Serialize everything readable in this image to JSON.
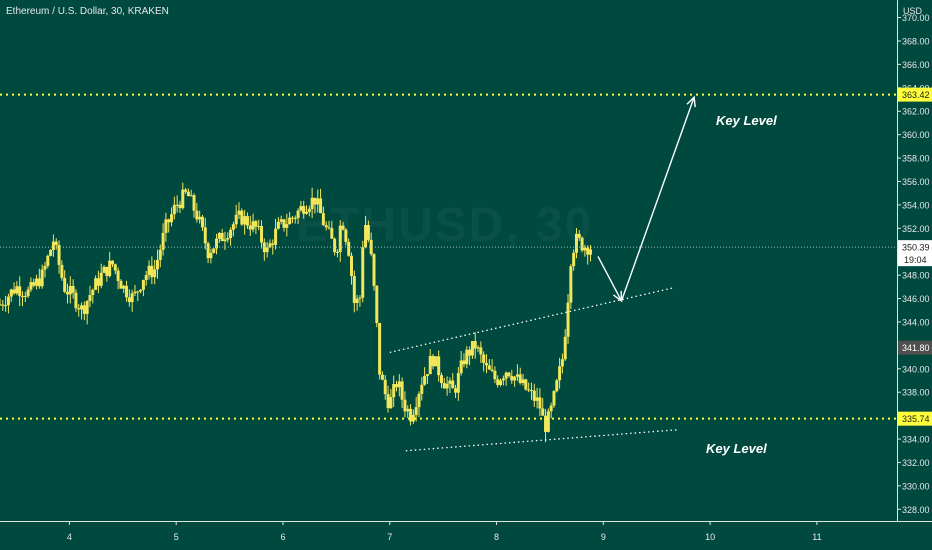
{
  "header": {
    "symbol_title": "Ethereum / U.S. Dollar, 30, KRAKEN",
    "watermark": "ETHUSD, 30"
  },
  "annotations": {
    "key_level_top": "Key Level",
    "key_level_bottom": "Key Level"
  },
  "colors": {
    "background": "#00493e",
    "candle": "#f2e75a",
    "key_level_line": "#ffff3c",
    "trendline": "#ffffff",
    "price_line": "#9fbfb6"
  },
  "chart_data": {
    "type": "candlestick",
    "y_axis_unit": "USD",
    "y_axis_side": "right",
    "ylim": [
      327,
      371.5
    ],
    "y_ticks": [
      "328.00",
      "330.00",
      "332.00",
      "334.00",
      "336.00",
      "338.00",
      "340.00",
      "342.00",
      "344.00",
      "346.00",
      "348.00",
      "350.00",
      "352.00",
      "354.00",
      "356.00",
      "358.00",
      "360.00",
      "362.00",
      "364.00",
      "366.00",
      "368.00",
      "370.00"
    ],
    "x_ticks": [
      "4",
      "5",
      "6",
      "7",
      "8",
      "9",
      "10",
      "11"
    ],
    "x_tick_values": [
      4,
      5,
      6,
      7,
      8,
      9,
      10,
      11
    ],
    "xlim": [
      3.35,
      11.75
    ],
    "price_path": [
      [
        3.35,
        345.5
      ],
      [
        3.5,
        347
      ],
      [
        3.62,
        346.5
      ],
      [
        3.75,
        348
      ],
      [
        3.85,
        351
      ],
      [
        3.95,
        347
      ],
      [
        4.05,
        346
      ],
      [
        4.12,
        345
      ],
      [
        4.2,
        346.5
      ],
      [
        4.3,
        348
      ],
      [
        4.4,
        349
      ],
      [
        4.5,
        347
      ],
      [
        4.6,
        346
      ],
      [
        4.7,
        348
      ],
      [
        4.8,
        348.5
      ],
      [
        4.9,
        352
      ],
      [
        5.0,
        354
      ],
      [
        5.1,
        355
      ],
      [
        5.2,
        353
      ],
      [
        5.3,
        350
      ],
      [
        5.4,
        351
      ],
      [
        5.5,
        352
      ],
      [
        5.6,
        353
      ],
      [
        5.75,
        352
      ],
      [
        5.85,
        350
      ],
      [
        5.95,
        352
      ],
      [
        6.1,
        353
      ],
      [
        6.2,
        354
      ],
      [
        6.3,
        354.5
      ],
      [
        6.4,
        352
      ],
      [
        6.5,
        350
      ],
      [
        6.55,
        353
      ],
      [
        6.62,
        350
      ],
      [
        6.67,
        345.5
      ],
      [
        6.72,
        346
      ],
      [
        6.76,
        353
      ],
      [
        6.82,
        350
      ],
      [
        6.87,
        345
      ],
      [
        6.9,
        340
      ],
      [
        6.95,
        338
      ],
      [
        7.0,
        337
      ],
      [
        7.07,
        339
      ],
      [
        7.13,
        337
      ],
      [
        7.2,
        336
      ],
      [
        7.3,
        339
      ],
      [
        7.4,
        341
      ],
      [
        7.5,
        339
      ],
      [
        7.6,
        338
      ],
      [
        7.7,
        341
      ],
      [
        7.8,
        342
      ],
      [
        7.9,
        340
      ],
      [
        8.0,
        339
      ],
      [
        8.1,
        340
      ],
      [
        8.2,
        339
      ],
      [
        8.3,
        338
      ],
      [
        8.4,
        337
      ],
      [
        8.45,
        335
      ],
      [
        8.5,
        336
      ],
      [
        8.55,
        338
      ],
      [
        8.62,
        341
      ],
      [
        8.66,
        345
      ],
      [
        8.7,
        350
      ],
      [
        8.75,
        351
      ],
      [
        8.82,
        350.5
      ],
      [
        8.88,
        350.4
      ]
    ],
    "last_price": 350.39,
    "countdown": "19:04",
    "key_levels": [
      363.42,
      335.74
    ],
    "marker_price": 341.8,
    "trendlines": [
      {
        "from": [
          7.0,
          341.4
        ],
        "to": [
          9.65,
          346.9
        ],
        "style": "dotted"
      },
      {
        "from": [
          7.15,
          333.0
        ],
        "to": [
          9.7,
          334.8
        ],
        "style": "dotted"
      }
    ],
    "arrows": [
      {
        "from": [
          8.95,
          349.6
        ],
        "to": [
          9.17,
          345.8
        ]
      },
      {
        "from": [
          9.17,
          345.8
        ],
        "to": [
          9.85,
          363.2
        ]
      }
    ]
  }
}
